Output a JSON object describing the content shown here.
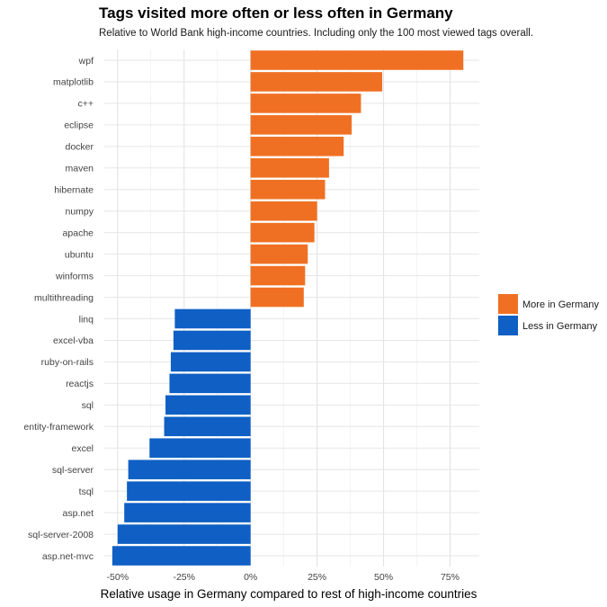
{
  "chart_data": {
    "type": "bar",
    "orientation": "horizontal",
    "title": "Tags visited more often or less often in Germany",
    "subtitle": "Relative to World Bank high-income countries. Including only the 100 most viewed tags overall.",
    "xlabel": "Relative usage in Germany compared to rest of high-income countries",
    "ylabel": "",
    "xlim": [
      -0.55,
      0.86
    ],
    "x_ticks": [
      -0.5,
      -0.25,
      0,
      0.25,
      0.5,
      0.75
    ],
    "x_tick_labels": [
      "-50%",
      "-25%",
      "0%",
      "25%",
      "50%",
      "75%"
    ],
    "grid": true,
    "legend_position": "right",
    "categories": [
      "wpf",
      "matplotlib",
      "c++",
      "eclipse",
      "docker",
      "maven",
      "hibernate",
      "numpy",
      "apache",
      "ubuntu",
      "winforms",
      "multithreading",
      "linq",
      "excel-vba",
      "ruby-on-rails",
      "reactjs",
      "sql",
      "entity-framework",
      "excel",
      "sql-server",
      "tsql",
      "asp.net",
      "sql-server-2008",
      "asp.net-mvc"
    ],
    "values": [
      0.8,
      0.495,
      0.415,
      0.38,
      0.35,
      0.295,
      0.28,
      0.25,
      0.24,
      0.215,
      0.205,
      0.2,
      -0.285,
      -0.29,
      -0.3,
      -0.305,
      -0.32,
      -0.325,
      -0.38,
      -0.46,
      -0.465,
      -0.475,
      -0.5,
      -0.52
    ],
    "series": [
      {
        "name": "More in Germany",
        "color": "#F07023"
      },
      {
        "name": "Less in Germany",
        "color": "#0F5FC4"
      }
    ]
  }
}
